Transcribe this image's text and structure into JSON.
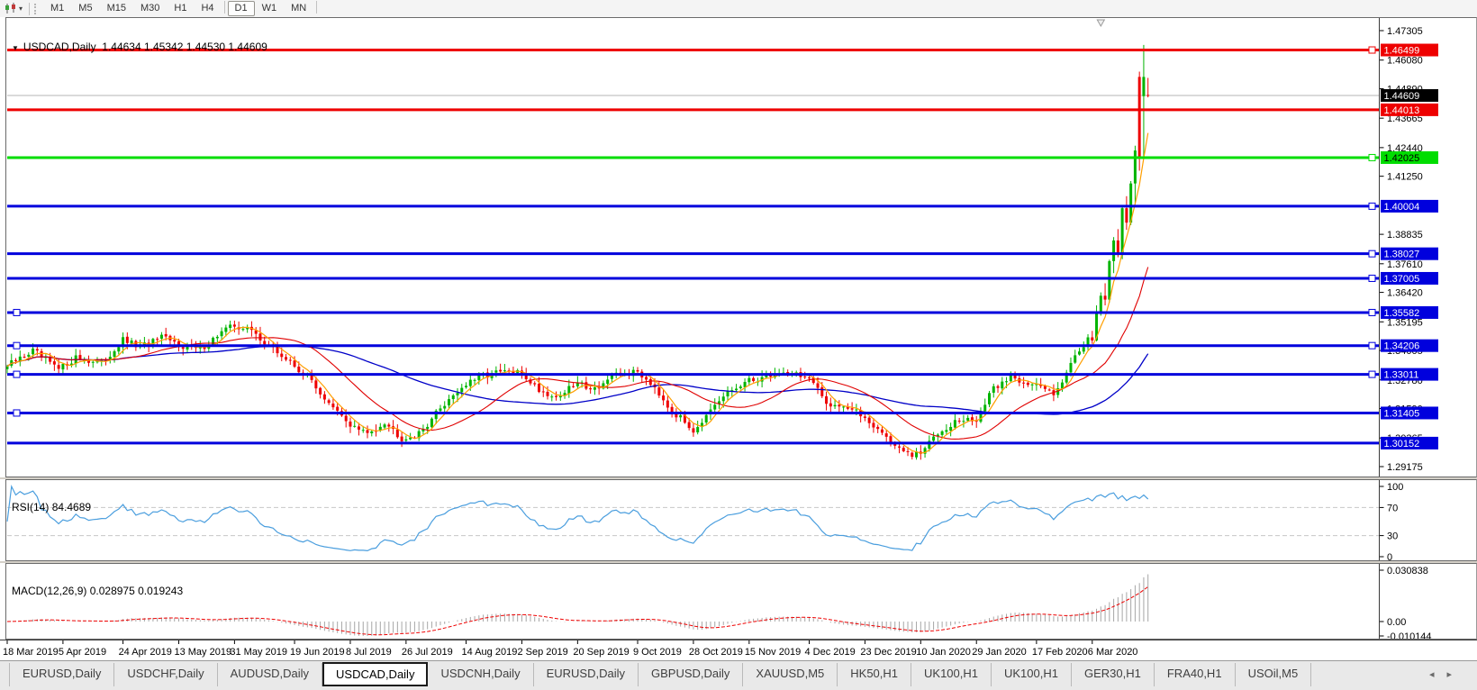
{
  "toolbar": {
    "timeframes": [
      "M1",
      "M5",
      "M15",
      "M30",
      "H1",
      "H4",
      "D1",
      "W1",
      "MN"
    ],
    "active_timeframe": "D1",
    "menu_glyph": "▾"
  },
  "chart_data": {
    "type": "candlestick",
    "title": {
      "menu_glyph": "▼",
      "symbol": "USDCAD,Daily",
      "ohlc": "1.44634 1.45342 1.44530 1.44609"
    },
    "ylim": [
      1.287983,
      1.478669
    ],
    "y_ticks": [
      1.47305,
      1.4608,
      1.4489,
      1.43665,
      1.4244,
      1.4125,
      1.38835,
      1.3761,
      1.3642,
      1.35195,
      1.34005,
      1.3278,
      1.3159,
      1.30365,
      1.29175
    ],
    "current_price": {
      "value": 1.44609,
      "label": "1.44609"
    },
    "h_lines": [
      {
        "price": 1.46499,
        "label": "1.46499",
        "color": "#ee0000",
        "text": "#ffffff",
        "right_handle": true,
        "left_handle": false
      },
      {
        "price": 1.44013,
        "label": "1.44013",
        "color": "#ee0000",
        "text": "#ffffff",
        "right_handle": false,
        "left_handle": false
      },
      {
        "price": 1.42025,
        "label": "1.42025",
        "color": "#00dd00",
        "text": "#000000",
        "right_handle": true,
        "left_handle": false
      },
      {
        "price": 1.40004,
        "label": "1.40004",
        "color": "#0000dd",
        "text": "#ffffff",
        "right_handle": true,
        "left_handle": false
      },
      {
        "price": 1.38027,
        "label": "1.38027",
        "color": "#0000dd",
        "text": "#ffffff",
        "right_handle": true,
        "left_handle": false
      },
      {
        "price": 1.37005,
        "label": "1.37005",
        "color": "#0000dd",
        "text": "#ffffff",
        "right_handle": true,
        "left_handle": false
      },
      {
        "price": 1.35582,
        "label": "1.35582",
        "color": "#0000dd",
        "text": "#ffffff",
        "right_handle": true,
        "left_handle": true
      },
      {
        "price": 1.34206,
        "label": "1.34206",
        "color": "#0000dd",
        "text": "#ffffff",
        "right_handle": true,
        "left_handle": true
      },
      {
        "price": 1.33011,
        "label": "1.33011",
        "color": "#0000dd",
        "text": "#ffffff",
        "right_handle": true,
        "left_handle": true
      },
      {
        "price": 1.31405,
        "label": "1.31405",
        "color": "#0000dd",
        "text": "#ffffff",
        "right_handle": false,
        "left_handle": true
      },
      {
        "price": 1.30152,
        "label": "1.30152",
        "color": "#0000dd",
        "text": "#ffffff",
        "right_handle": false,
        "left_handle": false
      }
    ],
    "x_labels": [
      [
        "18 Mar 2019",
        0
      ],
      [
        "5 Apr 2019",
        13
      ],
      [
        "24 Apr 2019",
        27
      ],
      [
        "13 May 2019",
        40
      ],
      [
        "31 May 2019",
        53
      ],
      [
        "19 Jun 2019",
        67
      ],
      [
        "8 Jul 2019",
        80
      ],
      [
        "26 Jul 2019",
        93
      ],
      [
        "14 Aug 2019",
        107
      ],
      [
        "2 Sep 2019",
        120
      ],
      [
        "20 Sep 2019",
        133
      ],
      [
        "9 Oct 2019",
        147
      ],
      [
        "28 Oct 2019",
        160
      ],
      [
        "15 Nov 2019",
        173
      ],
      [
        "4 Dec 2019",
        187
      ],
      [
        "23 Dec 2019",
        200
      ],
      [
        "10 Jan 2020",
        213
      ],
      [
        "29 Jan 2020",
        226
      ],
      [
        "17 Feb 2020",
        240
      ],
      [
        "6 Mar 2020",
        253
      ]
    ],
    "n_bars": 267,
    "shift_marker_bar": 255,
    "price_anchors": [
      [
        0,
        1.3335
      ],
      [
        6,
        1.34
      ],
      [
        12,
        1.332
      ],
      [
        16,
        1.3372
      ],
      [
        22,
        1.3345
      ],
      [
        27,
        1.3442
      ],
      [
        31,
        1.3415
      ],
      [
        36,
        1.3452
      ],
      [
        40,
        1.3425
      ],
      [
        45,
        1.3405
      ],
      [
        50,
        1.3478
      ],
      [
        53,
        1.3505
      ],
      [
        57,
        1.3482
      ],
      [
        61,
        1.342
      ],
      [
        67,
        1.3335
      ],
      [
        71,
        1.3275
      ],
      [
        75,
        1.3175
      ],
      [
        80,
        1.3092
      ],
      [
        84,
        1.3052
      ],
      [
        88,
        1.3105
      ],
      [
        92,
        1.3036
      ],
      [
        96,
        1.3052
      ],
      [
        100,
        1.314
      ],
      [
        104,
        1.3218
      ],
      [
        107,
        1.3258
      ],
      [
        111,
        1.3298
      ],
      [
        116,
        1.3312
      ],
      [
        120,
        1.3305
      ],
      [
        124,
        1.3238
      ],
      [
        128,
        1.3205
      ],
      [
        133,
        1.3265
      ],
      [
        137,
        1.3242
      ],
      [
        141,
        1.329
      ],
      [
        147,
        1.3312
      ],
      [
        151,
        1.3252
      ],
      [
        155,
        1.3148
      ],
      [
        160,
        1.3072
      ],
      [
        164,
        1.3142
      ],
      [
        168,
        1.3225
      ],
      [
        173,
        1.3272
      ],
      [
        178,
        1.33
      ],
      [
        183,
        1.3312
      ],
      [
        187,
        1.3282
      ],
      [
        191,
        1.3182
      ],
      [
        195,
        1.3172
      ],
      [
        200,
        1.3122
      ],
      [
        204,
        1.3058
      ],
      [
        208,
        1.2988
      ],
      [
        211,
        1.2962
      ],
      [
        213,
        1.2972
      ],
      [
        217,
        1.3062
      ],
      [
        221,
        1.3105
      ],
      [
        226,
        1.3112
      ],
      [
        230,
        1.3242
      ],
      [
        234,
        1.3292
      ],
      [
        240,
        1.3252
      ],
      [
        244,
        1.3228
      ],
      [
        247,
        1.3302
      ],
      [
        249,
        1.3388
      ],
      [
        251,
        1.342
      ],
      [
        252,
        1.342
      ]
    ],
    "explicit_candles": [
      [
        252,
        1.342,
        1.3468,
        1.3402,
        1.3455
      ],
      [
        253,
        1.3455,
        1.3482,
        1.3428,
        1.3442
      ],
      [
        254,
        1.3442,
        1.3588,
        1.3438,
        1.3562
      ],
      [
        255,
        1.3562,
        1.3642,
        1.3545,
        1.3628
      ],
      [
        256,
        1.3628,
        1.368,
        1.3588,
        1.3612
      ],
      [
        257,
        1.3612,
        1.3778,
        1.36,
        1.3772
      ],
      [
        258,
        1.3772,
        1.3872,
        1.3722,
        1.3858
      ],
      [
        259,
        1.3858,
        1.3905,
        1.3788,
        1.3802
      ],
      [
        260,
        1.3802,
        1.3998,
        1.378,
        1.3992
      ],
      [
        261,
        1.3992,
        1.4042,
        1.3902,
        1.3932
      ],
      [
        262,
        1.3932,
        1.4105,
        1.3922,
        1.4095
      ],
      [
        263,
        1.4095,
        1.4252,
        1.4008,
        1.4232
      ],
      [
        264,
        1.4538,
        1.456,
        1.4148,
        1.4198
      ],
      [
        265,
        1.4458,
        1.4671,
        1.4198,
        1.4538
      ],
      [
        266,
        1.4463,
        1.4534,
        1.4453,
        1.4461
      ]
    ],
    "ma_periods": {
      "fast": 5,
      "mid": 21,
      "slow": 55
    },
    "colors": {
      "bull": "#00b400",
      "bear": "#ee0000",
      "ma_fast": "#ff9f00",
      "ma_mid": "#e00000",
      "ma_slow": "#0000c8",
      "rsi_line": "#4a9ede",
      "rsi_level": "#c8c8c8",
      "macd_hist": "#a6a6a6",
      "macd_signal": "#ee0000",
      "current_line": "#b4b4b4",
      "current_label_bg": "#000000"
    },
    "indicators": {
      "rsi": {
        "name": "RSI(14)",
        "value": "84.4689",
        "period": 14,
        "levels": [
          70,
          30
        ],
        "axis_labels": [
          [
            100,
            "100"
          ],
          [
            70,
            "70"
          ],
          [
            30,
            "30"
          ],
          [
            0,
            "0"
          ]
        ]
      },
      "macd": {
        "name": "MACD(12,26,9)",
        "value": "0.028975 0.019243",
        "fast": 12,
        "slow": 26,
        "signal": 9,
        "axis_labels": [
          [
            0.030838,
            "0.030838"
          ],
          [
            0,
            "0.00"
          ],
          [
            -0.010144,
            "-0.010144"
          ]
        ]
      }
    }
  },
  "tabs": {
    "items": [
      "EURUSD,Daily",
      "USDCHF,Daily",
      "AUDUSD,Daily",
      "USDCAD,Daily",
      "USDCNH,Daily",
      "EURUSD,Daily",
      "GBPUSD,Daily",
      "XAUUSD,M5",
      "HK50,H1",
      "UK100,H1",
      "UK100,H1",
      "GER30,H1",
      "FRA40,H1",
      "USOil,M5"
    ],
    "active_index": 3,
    "scroll_left": "◂",
    "scroll_right": "▸"
  }
}
